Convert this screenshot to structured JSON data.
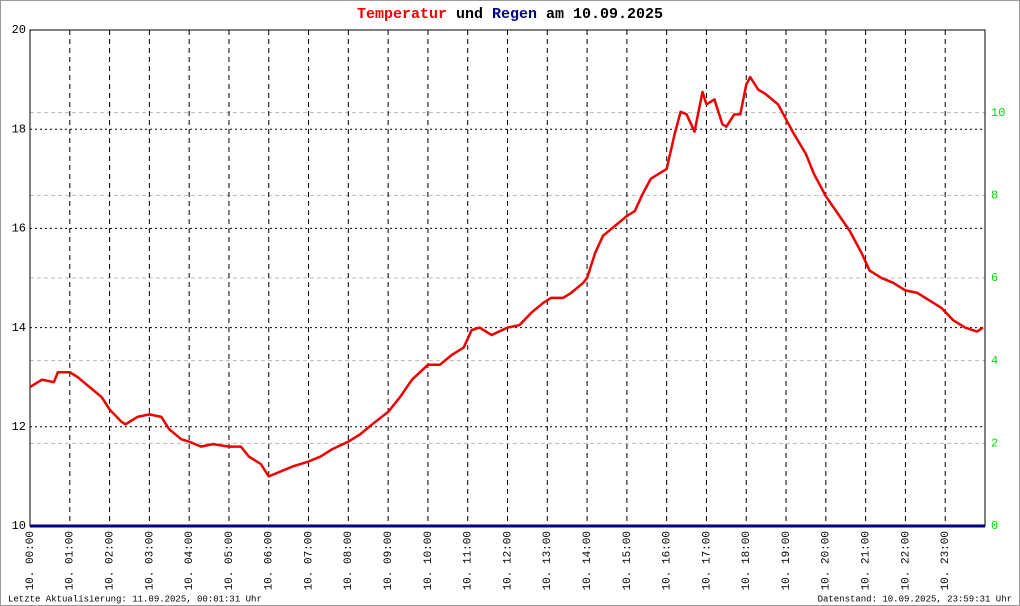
{
  "chart_data": {
    "type": "line",
    "title": {
      "joiner": "und",
      "suffix": "am 10.09.2025"
    },
    "footer_left": "Letzte Aktualisierung: 11.09.2025, 00:01:31 Uhr",
    "footer_right": "Datenstand: 10.09.2025, 23:59:31 Uhr",
    "xlim": [
      0,
      24
    ],
    "xticks": [
      {
        "value": 0,
        "label": "10. 00:00"
      },
      {
        "value": 1,
        "label": "10. 01:00"
      },
      {
        "value": 2,
        "label": "10. 02:00"
      },
      {
        "value": 3,
        "label": "10. 03:00"
      },
      {
        "value": 4,
        "label": "10. 04:00"
      },
      {
        "value": 5,
        "label": "10. 05:00"
      },
      {
        "value": 6,
        "label": "10. 06:00"
      },
      {
        "value": 7,
        "label": "10. 07:00"
      },
      {
        "value": 8,
        "label": "10. 08:00"
      },
      {
        "value": 9,
        "label": "10. 09:00"
      },
      {
        "value": 10,
        "label": "10. 10:00"
      },
      {
        "value": 11,
        "label": "10. 11:00"
      },
      {
        "value": 12,
        "label": "10. 12:00"
      },
      {
        "value": 13,
        "label": "10. 13:00"
      },
      {
        "value": 14,
        "label": "10. 14:00"
      },
      {
        "value": 15,
        "label": "10. 15:00"
      },
      {
        "value": 16,
        "label": "10. 16:00"
      },
      {
        "value": 17,
        "label": "10. 17:00"
      },
      {
        "value": 18,
        "label": "10. 18:00"
      },
      {
        "value": 19,
        "label": "10. 19:00"
      },
      {
        "value": 20,
        "label": "10. 20:00"
      },
      {
        "value": 21,
        "label": "10. 21:00"
      },
      {
        "value": 22,
        "label": "10. 22:00"
      },
      {
        "value": 23,
        "label": "10. 23:00"
      }
    ],
    "ylim": [
      10,
      20
    ],
    "yticks": [
      10,
      12,
      14,
      16,
      18,
      20
    ],
    "y2lim": [
      0,
      12
    ],
    "y2ticks": [
      0,
      2,
      4,
      6,
      8,
      10
    ],
    "y2color": "#00dd00",
    "grid": true,
    "x": [
      0,
      0.3,
      0.6,
      0.7,
      1,
      1.2,
      1.5,
      1.8,
      2,
      2.3,
      2.4,
      2.7,
      3,
      3.3,
      3.5,
      3.8,
      4,
      4.3,
      4.6,
      5,
      5.3,
      5.5,
      5.8,
      6,
      6.3,
      6.6,
      7,
      7.3,
      7.6,
      8,
      8.3,
      8.6,
      9,
      9.3,
      9.6,
      10,
      10.3,
      10.6,
      10.9,
      11.1,
      11.3,
      11.6,
      12,
      12.3,
      12.6,
      12.9,
      13.1,
      13.4,
      13.6,
      13.9,
      14,
      14.2,
      14.4,
      14.7,
      15,
      15.2,
      15.4,
      15.6,
      15.8,
      16,
      16.2,
      16.35,
      16.5,
      16.7,
      16.9,
      17,
      17.2,
      17.4,
      17.5,
      17.7,
      17.85,
      18,
      18.1,
      18.3,
      18.5,
      18.8,
      19,
      19.2,
      19.5,
      19.7,
      20,
      20.3,
      20.6,
      20.9,
      21.1,
      21.4,
      21.7,
      22,
      22.3,
      22.6,
      22.9,
      23.2,
      23.5,
      23.8,
      23.95
    ],
    "series": [
      {
        "name": "Temperatur",
        "color": "#ee0000",
        "axis": "y",
        "values": [
          12.8,
          12.95,
          12.9,
          13.1,
          13.1,
          13.0,
          12.8,
          12.6,
          12.35,
          12.1,
          12.05,
          12.2,
          12.25,
          12.2,
          11.95,
          11.75,
          11.7,
          11.6,
          11.65,
          11.6,
          11.6,
          11.4,
          11.25,
          11.0,
          11.1,
          11.2,
          11.3,
          11.4,
          11.55,
          11.7,
          11.85,
          12.05,
          12.3,
          12.6,
          12.95,
          13.25,
          13.25,
          13.45,
          13.6,
          13.95,
          14.0,
          13.85,
          14.0,
          14.05,
          14.3,
          14.5,
          14.6,
          14.6,
          14.7,
          14.9,
          15.0,
          15.5,
          15.85,
          16.05,
          16.25,
          16.35,
          16.7,
          17.0,
          17.1,
          17.2,
          17.9,
          18.35,
          18.3,
          17.95,
          18.75,
          18.5,
          18.6,
          18.1,
          18.05,
          18.3,
          18.3,
          18.9,
          19.05,
          18.8,
          18.7,
          18.5,
          18.2,
          17.9,
          17.5,
          17.1,
          16.65,
          16.3,
          15.95,
          15.5,
          15.15,
          15.0,
          14.9,
          14.75,
          14.7,
          14.55,
          14.4,
          14.15,
          14.0,
          13.92,
          14.0
        ]
      },
      {
        "name": "Regen",
        "color": "#000080",
        "axis": "y2",
        "x": [
          0,
          24
        ],
        "values": [
          0,
          0
        ]
      }
    ]
  }
}
